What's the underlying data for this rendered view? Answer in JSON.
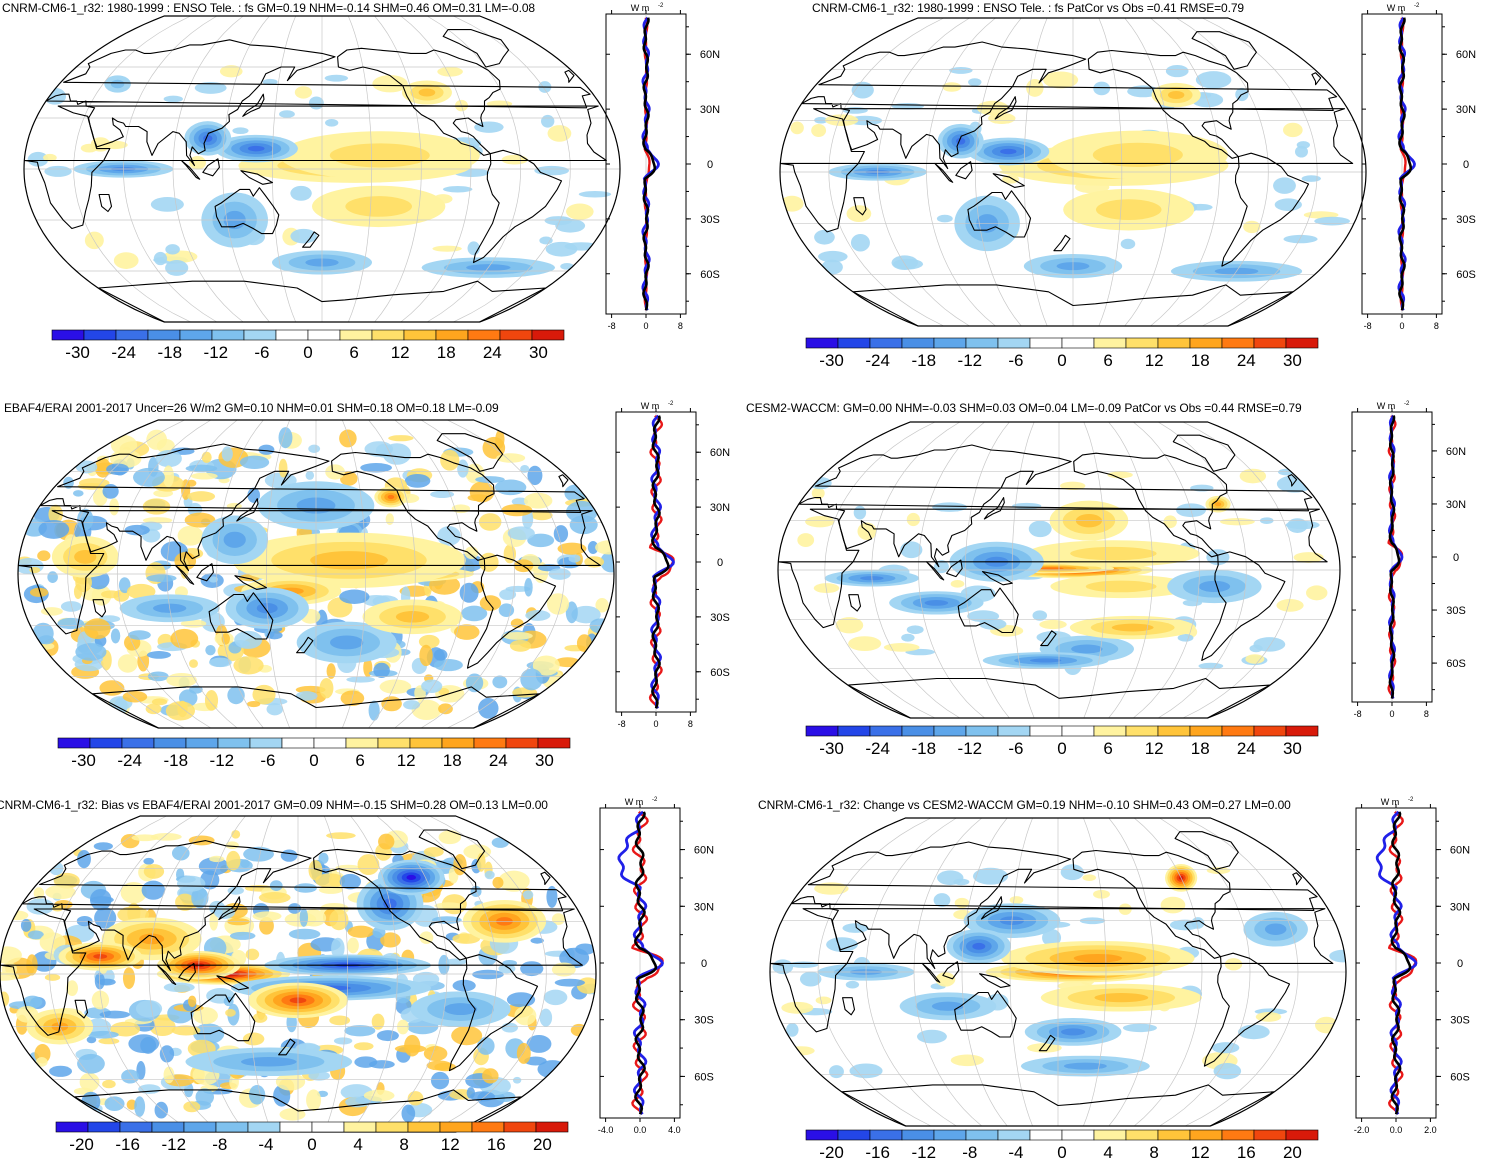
{
  "units": {
    "base": "W m",
    "exp": "-2"
  },
  "panels": [
    {
      "id": "p1",
      "title": "CNRM-CM6-1_r32: 1980-1999 : ENSO Tele. : fs GM=0.19 NHM=-0.14 SHM=0.46 OM=0.31 LM=-0.08",
      "colorbar_ticks": [
        "-30",
        "-24",
        "-18",
        "-12",
        "-6",
        "0",
        "6",
        "12",
        "18",
        "24",
        "30"
      ],
      "profile_xticks": [
        "-8",
        "0",
        "8"
      ],
      "profile_xrange": [
        -8,
        8
      ],
      "lat_ticks": [
        "60N",
        "30N",
        "0",
        "30S",
        "60S"
      ]
    },
    {
      "id": "p2",
      "title": "CNRM-CM6-1_r32: 1980-1999 : ENSO Tele. : fs PatCor vs Obs =0.41 RMSE=0.79",
      "colorbar_ticks": [
        "-30",
        "-24",
        "-18",
        "-12",
        "-6",
        "0",
        "6",
        "12",
        "18",
        "24",
        "30"
      ],
      "profile_xticks": [
        "-8",
        "0",
        "8"
      ],
      "profile_xrange": [
        -8,
        8
      ],
      "lat_ticks": [
        "60N",
        "30N",
        "0",
        "30S",
        "60S"
      ]
    },
    {
      "id": "p3",
      "title": "EBAF4/ERAI 2001-2017 Uncer=26 W/m2 GM=0.10 NHM=0.01 SHM=0.18 OM=0.18 LM=-0.09",
      "colorbar_ticks": [
        "-30",
        "-24",
        "-18",
        "-12",
        "-6",
        "0",
        "6",
        "12",
        "18",
        "24",
        "30"
      ],
      "profile_xticks": [
        "-8",
        "0",
        "8"
      ],
      "profile_xrange": [
        -8,
        8
      ],
      "lat_ticks": [
        "60N",
        "30N",
        "0",
        "30S",
        "60S"
      ]
    },
    {
      "id": "p4",
      "title": "CESM2-WACCM: GM=0.00 NHM=-0.03 SHM=0.03 OM=0.04 LM=-0.09 PatCor vs Obs =0.44 RMSE=0.79",
      "colorbar_ticks": [
        "-30",
        "-24",
        "-18",
        "-12",
        "-6",
        "0",
        "6",
        "12",
        "18",
        "24",
        "30"
      ],
      "profile_xticks": [
        "-8",
        "0",
        "8"
      ],
      "profile_xrange": [
        -8,
        8
      ],
      "lat_ticks": [
        "60N",
        "30N",
        "0",
        "30S",
        "60S"
      ]
    },
    {
      "id": "p5",
      "title": "CNRM-CM6-1_r32: Bias vs EBAF4/ERAI 2001-2017 GM=0.09 NHM=-0.15 SHM=0.28 OM=0.13 LM=0.00",
      "colorbar_ticks": [
        "-20",
        "-16",
        "-12",
        "-8",
        "-4",
        "0",
        "4",
        "8",
        "12",
        "16",
        "20"
      ],
      "profile_xticks": [
        "-4.0",
        "0.0",
        "4.0"
      ],
      "profile_xrange": [
        -4,
        4
      ],
      "lat_ticks": [
        "60N",
        "30N",
        "0",
        "30S",
        "60S"
      ]
    },
    {
      "id": "p6",
      "title": "CNRM-CM6-1_r32: Change vs CESM2-WACCM GM=0.19 NHM=-0.10 SHM=0.43 OM=0.27 LM=0.00",
      "colorbar_ticks": [
        "-20",
        "-16",
        "-12",
        "-8",
        "-4",
        "0",
        "4",
        "8",
        "12",
        "16",
        "20"
      ],
      "profile_xticks": [
        "-2.0",
        "0.0",
        "2.0"
      ],
      "profile_xrange": [
        -2,
        2
      ],
      "lat_ticks": [
        "60N",
        "30N",
        "0",
        "30S",
        "60S"
      ]
    }
  ],
  "colors": {
    "palette": [
      "#2a0fe6",
      "#2346e8",
      "#3a70e8",
      "#4a8fe6",
      "#5ea6ea",
      "#7fc1ee",
      "#a3d6f3",
      "#ffffff",
      "#ffffff",
      "#fff3a0",
      "#ffe06a",
      "#ffc43a",
      "#ffa51e",
      "#ff7a12",
      "#f0460e",
      "#d81a0a"
    ],
    "profile_land": "#2020e8",
    "profile_ocean": "#e81818",
    "profile_all": "#000000"
  }
}
